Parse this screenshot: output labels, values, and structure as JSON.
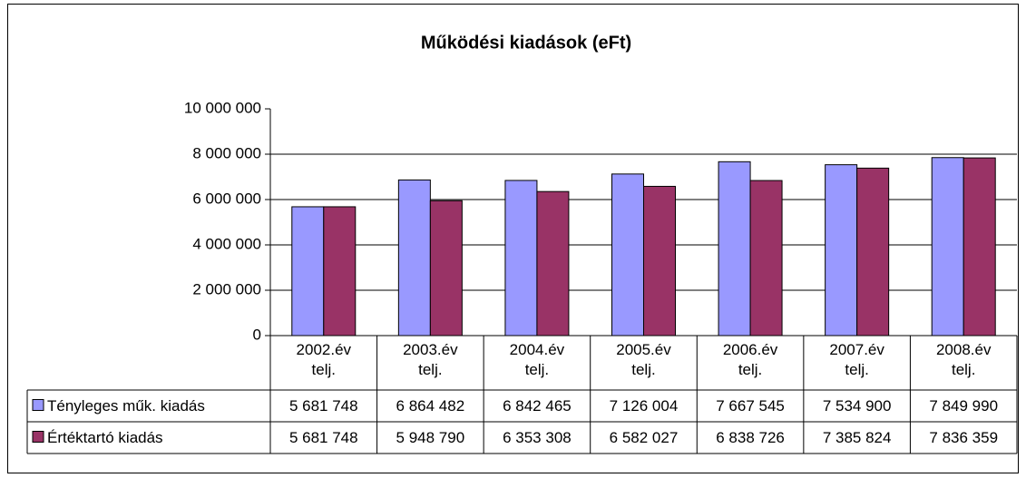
{
  "chart_data": {
    "type": "bar",
    "title": "Működési kiadások (eFt)",
    "categories": [
      "2002.év telj.",
      "2003.év telj.",
      "2004.év telj.",
      "2005.év telj.",
      "2006.év telj.",
      "2007.év telj.",
      "2008.év telj."
    ],
    "series": [
      {
        "name": "Tényleges műk. kiadás",
        "color": "#9999ff",
        "values": [
          5681748,
          6864482,
          6842465,
          7126004,
          7667545,
          7534900,
          7849990
        ],
        "value_labels": [
          "5 681 748",
          "6 864 482",
          "6 842 465",
          "7 126 004",
          "7 667 545",
          "7 534 900",
          "7 849 990"
        ]
      },
      {
        "name": "Értéktartó kiadás",
        "color": "#993366",
        "values": [
          5681748,
          5948790,
          6353308,
          6582027,
          6838726,
          7385824,
          7836359
        ],
        "value_labels": [
          "5 681 748",
          "5 948 790",
          "6 353 308",
          "6 582 027",
          "6 838 726",
          "7 385 824",
          "7 836 359"
        ]
      }
    ],
    "ylim": [
      0,
      10000000
    ],
    "yticks": [
      0,
      {
        "value": 2000000,
        "label": "2 000 000"
      },
      {
        "value": 4000000,
        "label": "4 000 000"
      },
      {
        "value": 6000000,
        "label": "6 000 000"
      },
      {
        "value": 8000000,
        "label": "8 000 000"
      },
      {
        "value": 10000000,
        "label": "10 000 000"
      }
    ],
    "grid": true
  }
}
